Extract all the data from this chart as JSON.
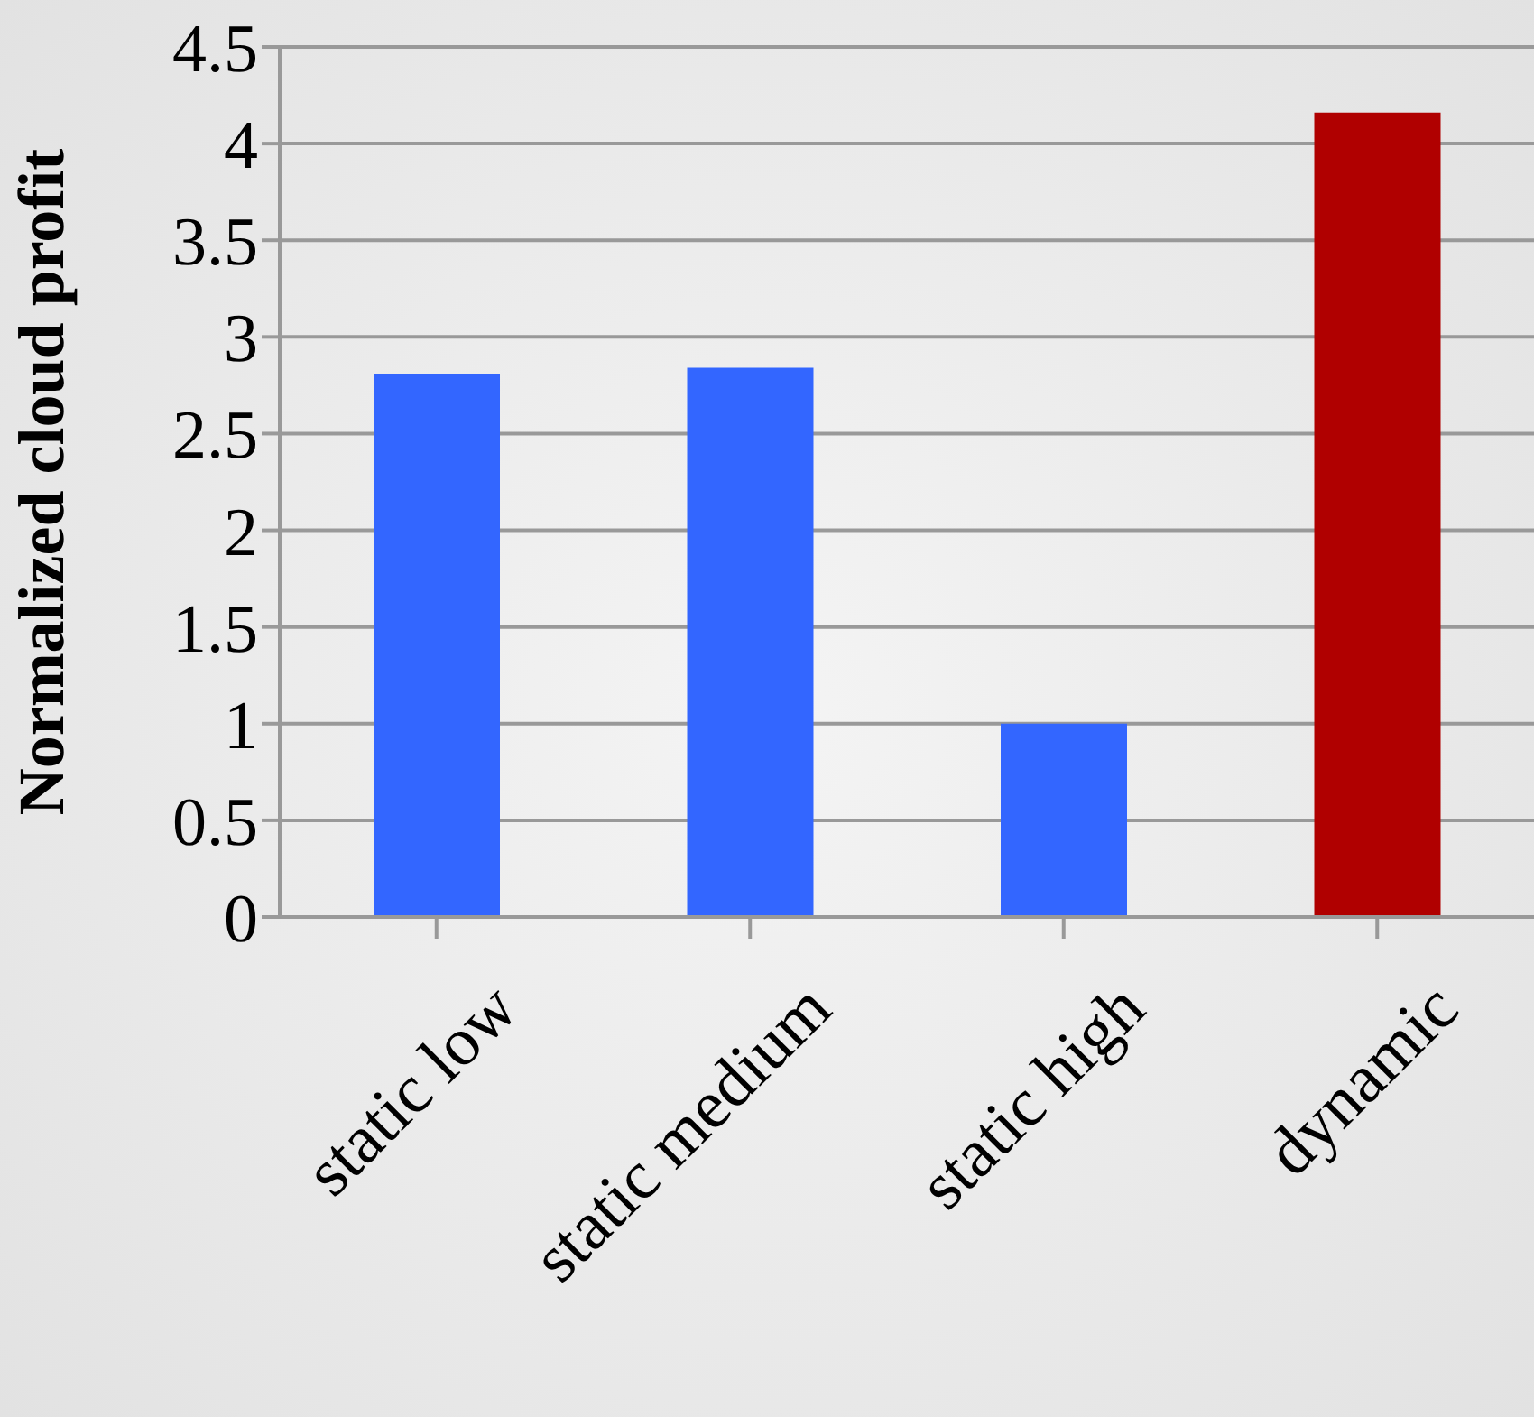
{
  "chart_data": {
    "type": "bar",
    "ylabel": "Normalized cloud profit",
    "categories": [
      "static low",
      "static medium",
      "static high",
      "dynamic"
    ],
    "values": [
      2.81,
      2.84,
      1.0,
      4.16
    ],
    "colors": [
      "#3366ff",
      "#3366ff",
      "#3366ff",
      "#b00000"
    ],
    "ylim": [
      0,
      4.5
    ],
    "yticks": [
      0,
      0.5,
      1,
      1.5,
      2,
      2.5,
      3,
      3.5,
      4,
      4.5
    ],
    "grid": "y"
  }
}
